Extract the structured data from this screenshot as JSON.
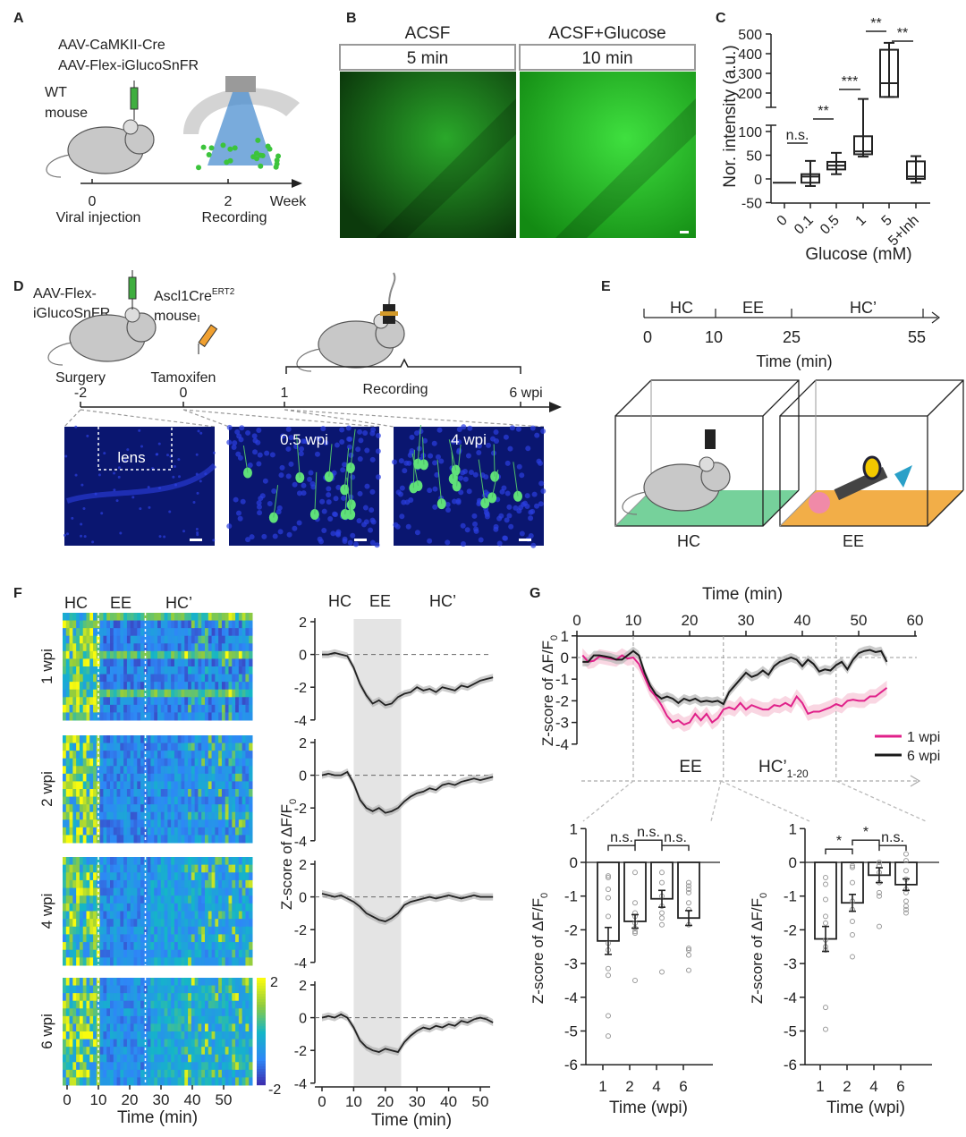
{
  "panel_labels": [
    "A",
    "B",
    "C",
    "D",
    "E",
    "F",
    "G"
  ],
  "panelA": {
    "virus1": "AAV-CaMKII-Cre",
    "virus2": "AAV-Flex-iGlucoSnFR",
    "mouse1": "WT",
    "mouse2": "mouse",
    "t0": "0",
    "t2": "2",
    "week": "Week",
    "injection": "Viral injection",
    "recording": "Recording"
  },
  "panelB": {
    "cond1": "ACSF",
    "cond2": "ACSF+Glucose",
    "time1": "5 min",
    "time2": "10 min"
  },
  "panelD": {
    "virus1": "AAV-Flex-",
    "virus2": "iGlucoSnFR",
    "line": "Ascl1Cre",
    "sup": "ERT2",
    "mouse": "mouse",
    "surgery": "Surgery",
    "tamoxifen": "Tamoxifen",
    "recording": "Recording",
    "ticks": [
      "-2",
      "0",
      "1",
      "6 wpi"
    ],
    "img1": "lens",
    "img2": "0.5 wpi",
    "img3": "4 wpi"
  },
  "panelE": {
    "phases": [
      "HC",
      "EE",
      "HC’"
    ],
    "ticks": [
      "0",
      "10",
      "25",
      "55"
    ],
    "xlabel": "Time (min)",
    "box1": "HC",
    "box2": "EE"
  },
  "colors": {
    "wpi1": "#e0218a",
    "wpi6": "#1a1a1a",
    "gfp": "#2fd12f",
    "dapi": "#1a2fd0"
  },
  "chart_data": [
    {
      "id": "C",
      "type": "box",
      "xlabel": "Glucose (mM)",
      "ylabel": "Nor. intensity (a.u.)",
      "categories": [
        "0",
        "0.1",
        "0.5",
        "1",
        "5",
        "5+Inh"
      ],
      "boxes": [
        {
          "min": -8,
          "q1": -8,
          "median": -8,
          "q3": -8,
          "max": -8
        },
        {
          "min": -15,
          "q1": -8,
          "median": 5,
          "q3": 10,
          "max": 38
        },
        {
          "min": 10,
          "q1": 20,
          "median": 28,
          "q3": 36,
          "max": 55
        },
        {
          "min": 47,
          "q1": 52,
          "median": 58,
          "q3": 90,
          "max": 170
        },
        {
          "min": 180,
          "q1": 180,
          "median": 250,
          "q3": 420,
          "max": 455
        },
        {
          "min": -8,
          "q1": 0,
          "median": 5,
          "q3": 37,
          "max": 48
        }
      ],
      "yticks_lower": [
        "-50",
        "0",
        "50",
        "100"
      ],
      "yticks_upper": [
        "200",
        "300",
        "400",
        "500"
      ],
      "significance": [
        {
          "pair": [
            0,
            1
          ],
          "label": "n.s."
        },
        {
          "pair": [
            1,
            2
          ],
          "label": "**"
        },
        {
          "pair": [
            2,
            3
          ],
          "label": "***"
        },
        {
          "pair": [
            3,
            4
          ],
          "label": "**"
        },
        {
          "pair": [
            4,
            5
          ],
          "label": "**"
        }
      ]
    },
    {
      "id": "F-heatmap",
      "type": "heatmap",
      "rows": [
        "1 wpi",
        "2 wpi",
        "4 wpi",
        "6 wpi"
      ],
      "phases": [
        "HC",
        "EE",
        "HC’"
      ],
      "xticks": [
        "0",
        "10",
        "20",
        "30",
        "40",
        "50"
      ],
      "xlabel": "Time (min)",
      "colorbar": [
        "2",
        "-2"
      ],
      "clim": [
        -2,
        2
      ]
    },
    {
      "id": "F-traces",
      "type": "line",
      "xlabel": "Time (min)",
      "ylabel": "Z-score of ΔF/F",
      "ylabel_sub": "0",
      "phases": [
        "HC",
        "EE",
        "HC’"
      ],
      "xticks": [
        "0",
        "10",
        "20",
        "30",
        "40",
        "50"
      ],
      "yticks": [
        "2",
        "0",
        "-2",
        "-4"
      ],
      "x_step": 2,
      "shade": [
        10,
        25
      ],
      "series": [
        {
          "name": "1 wpi",
          "values": [
            0,
            0,
            0.1,
            0,
            -0.1,
            -0.8,
            -1.8,
            -2.5,
            -3.0,
            -2.8,
            -3.1,
            -3.0,
            -2.6,
            -2.4,
            -2.3,
            -2.0,
            -2.2,
            -2.1,
            -2.3,
            -2.0,
            -2.1,
            -2.2,
            -1.9,
            -2.0,
            -1.8,
            -1.6,
            -1.5,
            -1.4
          ]
        },
        {
          "name": "2 wpi",
          "values": [
            0,
            0.1,
            0,
            0,
            0.2,
            -0.5,
            -1.5,
            -2.0,
            -2.2,
            -2.0,
            -2.3,
            -2.2,
            -2.0,
            -1.6,
            -1.3,
            -1.1,
            -1.0,
            -0.8,
            -0.9,
            -0.6,
            -0.5,
            -0.6,
            -0.4,
            -0.3,
            -0.2,
            -0.3,
            -0.2,
            -0.1
          ]
        },
        {
          "name": "4 wpi",
          "values": [
            0.2,
            0.1,
            0,
            0.1,
            -0.1,
            -0.3,
            -0.6,
            -1.0,
            -1.2,
            -1.4,
            -1.5,
            -1.3,
            -1.0,
            -0.5,
            -0.3,
            -0.2,
            -0.1,
            0,
            -0.1,
            0,
            0.1,
            0,
            -0.1,
            0,
            0.1,
            0,
            0,
            0
          ]
        },
        {
          "name": "6 wpi",
          "values": [
            0,
            0.1,
            0,
            0.2,
            0,
            -0.6,
            -1.4,
            -1.8,
            -2.0,
            -2.1,
            -1.9,
            -2.0,
            -2.1,
            -1.5,
            -1.1,
            -0.8,
            -0.6,
            -0.7,
            -0.5,
            -0.6,
            -0.4,
            -0.5,
            -0.2,
            -0.3,
            -0.1,
            0,
            -0.1,
            -0.3
          ]
        }
      ]
    },
    {
      "id": "G-line",
      "type": "line",
      "title": "Time (min)",
      "ylabel": "Z-score of ΔF/F",
      "ylabel_sub": "0",
      "xticks": [
        "0",
        "10",
        "20",
        "30",
        "40",
        "50",
        "60"
      ],
      "yticks": [
        "1",
        "0",
        "-1",
        "-2",
        "-3",
        "-4"
      ],
      "x_start": 1,
      "x_step": 1,
      "segments": [
        "EE",
        "HC’"
      ],
      "segment_sub": "1-20",
      "legend": "right",
      "series": [
        {
          "name": "1 wpi",
          "values": [
            0.1,
            -0.2,
            -0.15,
            0.05,
            0,
            -0.05,
            -0.1,
            0.1,
            -0.05,
            0,
            -0.3,
            -0.9,
            -1.5,
            -1.8,
            -2.2,
            -2.7,
            -3.0,
            -2.9,
            -3.1,
            -3.0,
            -2.6,
            -2.9,
            -2.6,
            -3.0,
            -2.8,
            -2.4,
            -2.3,
            -2.4,
            -2.1,
            -2.4,
            -2.2,
            -2.3,
            -2.4,
            -2.4,
            -2.2,
            -2.25,
            -2.1,
            -2.25,
            -1.8,
            -2.1,
            -2.6,
            -2.5,
            -2.5,
            -2.4,
            -2.3,
            -2.15,
            -2.25,
            -2.0,
            -1.95,
            -2.0,
            -2.0,
            -1.8,
            -1.8,
            -1.6,
            -1.4
          ]
        },
        {
          "name": "6 wpi",
          "values": [
            -0.2,
            -0.2,
            0.1,
            0.1,
            0.05,
            0,
            -0.1,
            -0.1,
            0.1,
            0.3,
            0.1,
            -0.7,
            -1.3,
            -1.7,
            -1.9,
            -1.8,
            -1.9,
            -2.1,
            -1.9,
            -2.0,
            -1.9,
            -2.05,
            -2.0,
            -2.05,
            -2.0,
            -2.15,
            -1.6,
            -1.3,
            -1.0,
            -0.7,
            -0.9,
            -0.8,
            -0.6,
            -0.8,
            -0.4,
            -0.2,
            -0.1,
            0,
            -0.1,
            -0.4,
            -0.1,
            -0.3,
            -0.65,
            -0.55,
            -0.6,
            -0.35,
            -0.2,
            -0.55,
            -0.1,
            0.2,
            0.3,
            0.35,
            0.25,
            0.3,
            -0.2
          ]
        }
      ]
    },
    {
      "id": "G-bars-EE",
      "type": "bar",
      "xlabel": "Time (wpi)",
      "ylabel": "Z-score of ΔF/F",
      "ylabel_sub": "0",
      "categories": [
        "1",
        "2",
        "4",
        "6"
      ],
      "yticks": [
        "1",
        "0",
        "-1",
        "-2",
        "-3",
        "-4",
        "-5",
        "-6"
      ],
      "values": [
        -2.33,
        -1.75,
        -1.08,
        -1.65
      ],
      "sem": [
        0.4,
        0.2,
        0.25,
        0.22
      ],
      "points": [
        [
          -0.4,
          -0.45,
          -0.8,
          -1.05,
          -1.6,
          -2.4,
          -2.6,
          -3.15,
          -3.35,
          -4.55,
          -5.15
        ],
        [
          -0.3,
          -1.2,
          -1.5,
          -1.6,
          -1.8,
          -1.95,
          -2.05,
          -2.1,
          -3.5
        ],
        [
          -0.3,
          -0.6,
          -1.0,
          -1.3,
          -1.5,
          -1.65,
          -1.85,
          -3.25
        ],
        [
          -0.6,
          -0.7,
          -0.8,
          -0.9,
          -1.2,
          -1.4,
          -1.85,
          -2.55,
          -2.6,
          -2.75,
          -3.2
        ]
      ],
      "significance": [
        "n.s.",
        "n.s.",
        "n.s."
      ]
    },
    {
      "id": "G-bars-HC",
      "type": "bar",
      "xlabel": "Time (wpi)",
      "ylabel": "Z-score of ΔF/F",
      "ylabel_sub": "0",
      "categories": [
        "1",
        "2",
        "4",
        "6"
      ],
      "yticks": [
        "1",
        "0",
        "-1",
        "-2",
        "-3",
        "-4",
        "-5",
        "-6"
      ],
      "values": [
        -2.27,
        -1.2,
        -0.38,
        -0.66
      ],
      "sem": [
        0.37,
        0.25,
        0.22,
        0.17
      ],
      "points": [
        [
          -0.45,
          -0.65,
          -1.1,
          -1.6,
          -1.8,
          -2.3,
          -2.5,
          -2.6,
          -4.3,
          -4.95
        ],
        [
          -0.1,
          -0.15,
          -0.6,
          -1.15,
          -1.4,
          -1.75,
          -2.15,
          -2.8
        ],
        [
          0,
          -0.1,
          -0.3,
          -0.6,
          -0.9,
          -1.0,
          -1.9
        ],
        [
          0.25,
          0.05,
          -0.25,
          -0.5,
          -0.8,
          -0.9,
          -1.15,
          -1.3,
          -1.4,
          -1.5
        ]
      ],
      "significance": [
        "*",
        "*",
        "n.s."
      ]
    }
  ]
}
